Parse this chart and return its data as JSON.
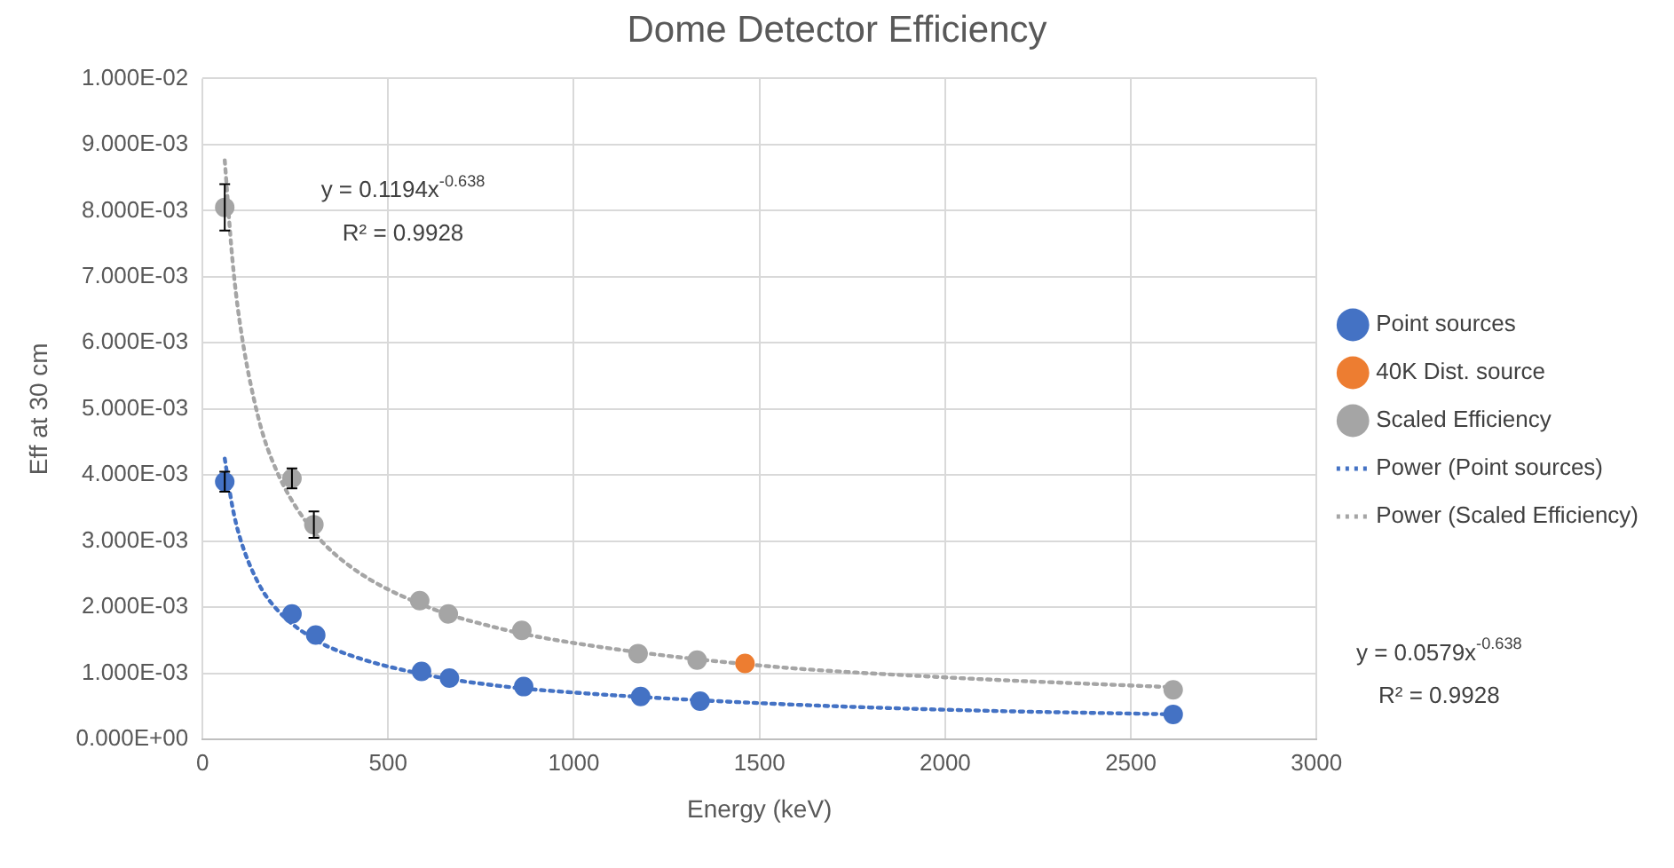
{
  "chart_data": {
    "type": "scatter",
    "title": "Dome Detector Efficiency",
    "xlabel": "Energy (keV)",
    "ylabel": "Eff at 30 cm",
    "xlim": [
      0,
      3000
    ],
    "xticks": [
      0,
      500,
      1000,
      1500,
      2000,
      2500,
      3000
    ],
    "ylim": [
      0,
      0.01
    ],
    "yticks": [
      {
        "value": 0,
        "label": "0.000E+00"
      },
      {
        "value": 0.001,
        "label": "1.000E-03"
      },
      {
        "value": 0.002,
        "label": "2.000E-03"
      },
      {
        "value": 0.003,
        "label": "3.000E-03"
      },
      {
        "value": 0.004,
        "label": "4.000E-03"
      },
      {
        "value": 0.005,
        "label": "5.000E-03"
      },
      {
        "value": 0.006,
        "label": "6.000E-03"
      },
      {
        "value": 0.007,
        "label": "7.000E-03"
      },
      {
        "value": 0.008,
        "label": "8.000E-03"
      },
      {
        "value": 0.009,
        "label": "9.000E-03"
      },
      {
        "value": 0.01,
        "label": "1.000E-02"
      }
    ],
    "grid": true,
    "legend": "right",
    "marker": "circle",
    "series": [
      {
        "name": "Point sources",
        "color": "#4472c4",
        "x": [
          60,
          241,
          305,
          590,
          665,
          865,
          1180,
          1340,
          2614
        ],
        "values": [
          0.0039,
          0.0019,
          0.00158,
          0.00103,
          0.00093,
          0.0008,
          0.00065,
          0.00058,
          0.00038
        ],
        "errors": [
          0.00015,
          null,
          null,
          null,
          null,
          null,
          null,
          null,
          null
        ]
      },
      {
        "name": "40K Dist. source",
        "color": "#ed7d31",
        "x": [
          1461
        ],
        "values": [
          0.00115
        ]
      },
      {
        "name": "Scaled Efficiency",
        "color": "#a5a5a5",
        "x": [
          60,
          241,
          300,
          585,
          662,
          860,
          1173,
          1332,
          2614
        ],
        "values": [
          0.00805,
          0.00395,
          0.00325,
          0.0021,
          0.0019,
          0.00165,
          0.0013,
          0.0012,
          0.00075
        ],
        "errors": [
          0.00035,
          0.00015,
          0.0002,
          null,
          null,
          null,
          null,
          null,
          null
        ]
      },
      {
        "name": "Power (Point sources)",
        "type": "line",
        "color": "#4472c4",
        "line_style": "dotted",
        "marker": "none",
        "x": [
          60,
          80,
          100,
          150,
          200,
          300,
          400,
          600,
          800,
          1000,
          1500,
          2000,
          2614
        ],
        "values": [
          0.00425,
          0.00354,
          0.00307,
          0.00237,
          0.00197,
          0.00152,
          0.00127,
          0.00098,
          0.00081,
          0.00071,
          0.00055,
          0.00045,
          0.00038
        ]
      },
      {
        "name": "Power (Scaled Efficiency)",
        "type": "line",
        "color": "#a5a5a5",
        "line_style": "dotted",
        "marker": "none",
        "x": [
          60,
          80,
          100,
          150,
          200,
          300,
          400,
          600,
          800,
          1000,
          1500,
          2000,
          2614
        ],
        "values": [
          0.00876,
          0.0073,
          0.00633,
          0.00488,
          0.00406,
          0.00314,
          0.00261,
          0.00202,
          0.00168,
          0.00146,
          0.00112,
          0.00094,
          0.00079
        ]
      }
    ],
    "annotations": [
      "y = 0.1194x$^{-0.638}$",
      "R² = 0.9928",
      "y = 0.0579x$^{-0.638}$",
      "R² = 0.9928"
    ]
  }
}
